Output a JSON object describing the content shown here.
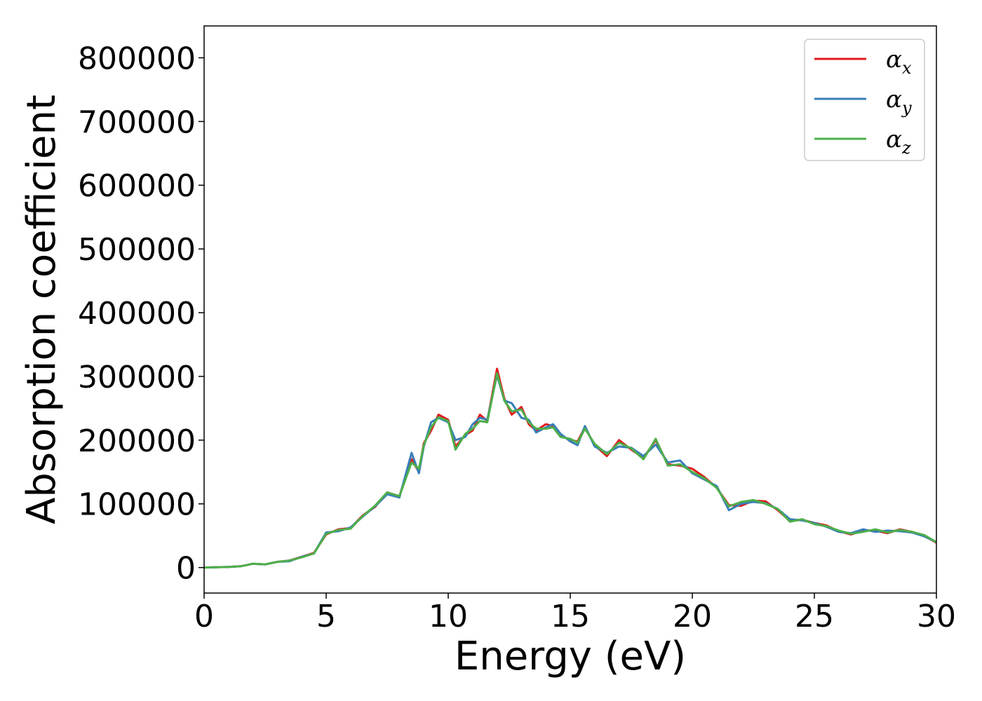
{
  "chart_data": {
    "type": "line",
    "title": "",
    "xlabel": "Energy (eV)",
    "ylabel": "Absorption coefficient",
    "xlim": [
      0,
      30
    ],
    "ylim": [
      -40000,
      850000
    ],
    "xticks": [
      0,
      5,
      10,
      15,
      20,
      25,
      30
    ],
    "yticks": [
      0,
      100000,
      200000,
      300000,
      400000,
      500000,
      600000,
      700000,
      800000
    ],
    "xtick_labels": [
      "0",
      "5",
      "10",
      "15",
      "20",
      "25",
      "30"
    ],
    "ytick_labels": [
      "0",
      "100000",
      "200000",
      "300000",
      "400000",
      "500000",
      "600000",
      "700000",
      "800000"
    ],
    "grid": false,
    "legend_position": "top-right",
    "x": [
      0,
      1,
      1.5,
      2,
      2.5,
      3,
      3.5,
      4,
      4.5,
      5,
      5.5,
      6,
      6.5,
      7,
      7.5,
      8,
      8.5,
      8.8,
      9,
      9.3,
      9.6,
      10,
      10.3,
      10.7,
      11,
      11.3,
      11.6,
      12,
      12.3,
      12.6,
      13,
      13.3,
      13.6,
      14,
      14.3,
      14.6,
      15,
      15.3,
      15.6,
      16,
      16.5,
      17,
      17.5,
      18,
      18.5,
      19,
      19.5,
      20,
      20.5,
      21,
      21.5,
      22,
      22.5,
      23,
      23.5,
      24,
      24.5,
      25,
      25.5,
      26,
      26.5,
      27,
      27.5,
      28,
      28.5,
      29,
      29.5,
      30
    ],
    "series": [
      {
        "name": "α_x",
        "symbol": "α",
        "subscript": "x",
        "color": "#e41a1c",
        "values": [
          0,
          1000,
          2000,
          6000,
          5000,
          9000,
          11000,
          17000,
          23000,
          52000,
          60000,
          62000,
          82000,
          95000,
          118000,
          112000,
          170000,
          150000,
          195000,
          215000,
          240000,
          232000,
          190000,
          208000,
          215000,
          240000,
          230000,
          312000,
          265000,
          240000,
          252000,
          225000,
          215000,
          225000,
          222000,
          208000,
          200000,
          198000,
          220000,
          192000,
          175000,
          200000,
          185000,
          172000,
          200000,
          162000,
          160000,
          155000,
          142000,
          125000,
          98000,
          97000,
          105000,
          104000,
          90000,
          73000,
          75000,
          70000,
          66000,
          57000,
          52000,
          58000,
          58000,
          54000,
          60000,
          56000,
          50000,
          39000
        ]
      },
      {
        "name": "α_y",
        "symbol": "α",
        "subscript": "y",
        "color": "#377eb8",
        "values": [
          0,
          1000,
          2000,
          6000,
          5000,
          9000,
          10000,
          17000,
          22000,
          55000,
          57000,
          63000,
          80000,
          96000,
          115000,
          110000,
          180000,
          148000,
          190000,
          228000,
          235000,
          228000,
          200000,
          205000,
          225000,
          235000,
          232000,
          302000,
          262000,
          258000,
          235000,
          232000,
          212000,
          220000,
          225000,
          210000,
          198000,
          192000,
          222000,
          190000,
          180000,
          190000,
          188000,
          175000,
          193000,
          165000,
          168000,
          148000,
          138000,
          128000,
          90000,
          100000,
          103000,
          101000,
          92000,
          76000,
          74000,
          70000,
          64000,
          56000,
          54000,
          60000,
          56000,
          58000,
          57000,
          55000,
          49000,
          40000
        ]
      },
      {
        "name": "α_z",
        "symbol": "α",
        "subscript": "z",
        "color": "#4daf4a",
        "values": [
          0,
          1000,
          2000,
          6000,
          5000,
          9000,
          11000,
          16000,
          22000,
          53000,
          59000,
          61000,
          81000,
          97000,
          118000,
          112000,
          165000,
          155000,
          192000,
          220000,
          236000,
          230000,
          185000,
          210000,
          218000,
          230000,
          228000,
          305000,
          262000,
          245000,
          248000,
          228000,
          218000,
          218000,
          220000,
          205000,
          202000,
          196000,
          218000,
          194000,
          178000,
          196000,
          187000,
          170000,
          202000,
          160000,
          162000,
          150000,
          140000,
          125000,
          96000,
          103000,
          106000,
          100000,
          92000,
          72000,
          76000,
          68000,
          65000,
          58000,
          53000,
          56000,
          60000,
          55000,
          59000,
          56000,
          51000,
          40000
        ]
      }
    ]
  }
}
